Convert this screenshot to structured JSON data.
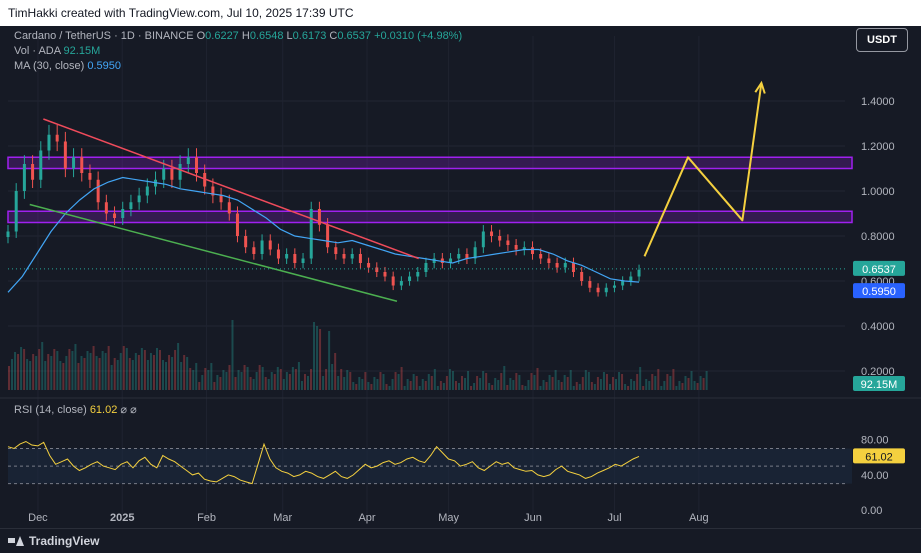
{
  "header": {
    "created_by": "TimHakki created with TradingView.com, Jul 10, 2025 17:39 UTC"
  },
  "footer": {
    "brand": "TradingView"
  },
  "legend": {
    "symbol": "Cardano / TetherUS · 1D · BINANCE",
    "o_label": "O",
    "o_value": "0.6227",
    "h_label": "H",
    "h_value": "0.6548",
    "l_label": "L",
    "l_value": "0.6173",
    "c_label": "C",
    "c_value": "0.6537",
    "change": "+0.0310 (+4.98%)",
    "vol_label": "Vol · ADA",
    "vol_value": "92.15M",
    "ma_label": "MA (30, close)",
    "ma_value": "0.5950",
    "rsi_label": "RSI (14, close)",
    "rsi_value": "61.02"
  },
  "currency_button": "USDT",
  "colors": {
    "background": "#161a25",
    "up": "#26a69a",
    "down": "#ef5350",
    "ma": "#42a5f5",
    "rsi": "#f4d03f",
    "zone": "#a020f0",
    "resistance_line": "#ef4b5b",
    "support_line": "#4caf50",
    "projection": "#f4d03f"
  },
  "chart_data": [
    {
      "type": "candlestick",
      "title": "Cardano / TetherUS · 1D · BINANCE",
      "x_ticks": [
        "Dec",
        "2025",
        "Feb",
        "Mar",
        "Apr",
        "May",
        "Jun",
        "Jul",
        "Aug"
      ],
      "y_ticks": [
        "0.2000",
        "0.4000",
        "0.6000",
        "0.8000",
        "1.0000",
        "1.2000",
        "1.4000"
      ],
      "ylim": [
        0.2,
        1.6
      ],
      "current_price": "0.6537",
      "ma_current": "0.5950",
      "close_series": [
        0.82,
        1.0,
        1.12,
        1.05,
        1.18,
        1.25,
        1.22,
        1.1,
        1.15,
        1.08,
        1.05,
        0.95,
        0.9,
        0.88,
        0.92,
        0.95,
        0.98,
        1.02,
        1.05,
        1.1,
        1.05,
        1.12,
        1.15,
        1.08,
        1.02,
        0.98,
        0.95,
        0.9,
        0.8,
        0.75,
        0.72,
        0.78,
        0.74,
        0.7,
        0.72,
        0.68,
        0.7,
        0.92,
        0.85,
        0.75,
        0.72,
        0.7,
        0.72,
        0.68,
        0.66,
        0.64,
        0.62,
        0.58,
        0.6,
        0.62,
        0.64,
        0.68,
        0.7,
        0.68,
        0.7,
        0.72,
        0.7,
        0.75,
        0.82,
        0.8,
        0.78,
        0.76,
        0.74,
        0.75,
        0.72,
        0.7,
        0.68,
        0.66,
        0.68,
        0.64,
        0.6,
        0.57,
        0.55,
        0.57,
        0.58,
        0.6,
        0.62,
        0.65
      ],
      "ma_series": [
        0.55,
        0.62,
        0.72,
        0.82,
        0.9,
        0.96,
        1.01,
        1.04,
        1.06,
        1.05,
        1.04,
        1.03,
        1.01,
        1.0,
        0.99,
        0.98,
        0.96,
        0.92,
        0.88,
        0.83,
        0.8,
        0.79,
        0.78,
        0.77,
        0.78,
        0.76,
        0.74,
        0.72,
        0.71,
        0.7,
        0.69,
        0.68,
        0.7,
        0.71,
        0.72,
        0.73,
        0.74,
        0.74,
        0.72,
        0.69,
        0.67,
        0.64,
        0.61,
        0.6,
        0.595
      ],
      "zones": [
        {
          "low": 1.1,
          "high": 1.15
        },
        {
          "low": 0.86,
          "high": 0.91
        }
      ],
      "trendlines": [
        {
          "name": "resistance",
          "start": {
            "x": "Nov 25",
            "y": 1.32
          },
          "end": {
            "x": "Apr 20",
            "y": 0.7
          }
        },
        {
          "name": "support",
          "start": {
            "x": "Nov 20",
            "y": 0.94
          },
          "end": {
            "x": "Apr 12",
            "y": 0.51
          }
        }
      ],
      "projection": [
        {
          "x": "Jul 12",
          "y": 0.71
        },
        {
          "x": "Jul 28",
          "y": 1.15
        },
        {
          "x": "Aug 17",
          "y": 0.87
        },
        {
          "x": "Aug 24",
          "y": 1.48
        }
      ]
    },
    {
      "type": "bar",
      "title": "Vol · ADA",
      "current": "92.15M"
    },
    {
      "type": "line",
      "title": "RSI (14, close)",
      "y_ticks": [
        "0.00",
        "40.00",
        "80.00"
      ],
      "ylim": [
        0,
        100
      ],
      "bands": [
        30,
        50,
        70
      ],
      "current": "61.02",
      "values": [
        72,
        70,
        75,
        78,
        74,
        73,
        77,
        62,
        52,
        55,
        58,
        50,
        45,
        48,
        52,
        55,
        50,
        48,
        46,
        52,
        55,
        48,
        56,
        60,
        52,
        48,
        62,
        58,
        55,
        50,
        45,
        40,
        42,
        35,
        33,
        32,
        36,
        40,
        38,
        34,
        32,
        30,
        52,
        75,
        58,
        48,
        44,
        42,
        38,
        40,
        44,
        42,
        38,
        36,
        40,
        44,
        38,
        36,
        40,
        46,
        52,
        48,
        50,
        54,
        56,
        52,
        54,
        58,
        60,
        56,
        54,
        62,
        72,
        65,
        58,
        56,
        50,
        52,
        55,
        48,
        45,
        50,
        55,
        52,
        54,
        48,
        46,
        44,
        45,
        40,
        38,
        40,
        46,
        50,
        44,
        42,
        40,
        36,
        38,
        42,
        45,
        48,
        52,
        50,
        54,
        58,
        61
      ]
    }
  ]
}
